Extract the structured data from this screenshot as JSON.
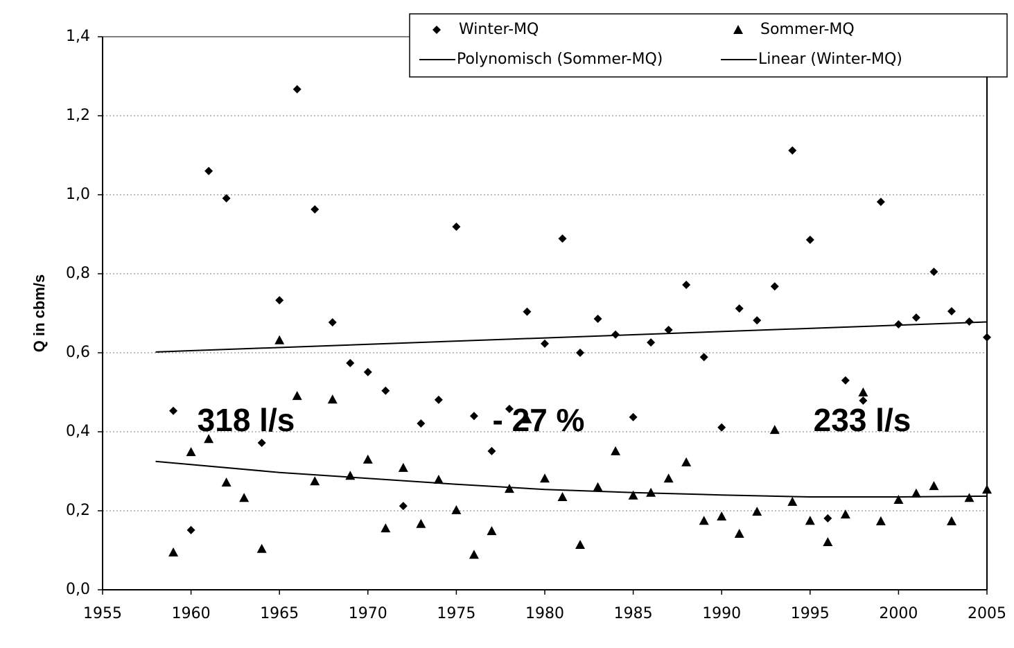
{
  "chart_data": {
    "type": "scatter",
    "y_label": "Q in cbm/s",
    "annotations": [
      "318 l/s",
      "- 27 %",
      "233 l/s"
    ],
    "xlim": [
      1955,
      2005
    ],
    "xticks": [
      1955,
      1960,
      1965,
      1970,
      1975,
      1980,
      1985,
      1990,
      1995,
      2000,
      2005
    ],
    "ylim": [
      0,
      1.4
    ],
    "yticks": [
      {
        "value": 0,
        "label": "0,0"
      },
      {
        "value": 0.2,
        "label": "0,2"
      },
      {
        "value": 0.4,
        "label": "0,4"
      },
      {
        "value": 0.6,
        "label": "0,6"
      },
      {
        "value": 0.8,
        "label": "0,8"
      },
      {
        "value": 1.0,
        "label": "1,0"
      },
      {
        "value": 1.2,
        "label": "1,2"
      },
      {
        "value": 1.4,
        "label": "1,4"
      }
    ],
    "grid": true,
    "legend": "top-right",
    "series": [
      {
        "name": "Winter-MQ",
        "color": "#000000",
        "marker": "diamond",
        "x": [
          1959,
          1960,
          1961,
          1962,
          1964,
          1965,
          1966,
          1967,
          1968,
          1969,
          1970,
          1971,
          1972,
          1973,
          1974,
          1975,
          1976,
          1977,
          1978,
          1979,
          1980,
          1981,
          1982,
          1983,
          1984,
          1985,
          1986,
          1987,
          1988,
          1989,
          1990,
          1991,
          1992,
          1993,
          1994,
          1995,
          1996,
          1997,
          1998,
          1999,
          2000,
          2001,
          2002,
          2003,
          2004,
          2005
        ],
        "values": [
          0.453,
          0.151,
          1.06,
          0.991,
          0.372,
          0.733,
          1.267,
          0.963,
          0.677,
          0.574,
          0.551,
          0.504,
          0.212,
          0.421,
          0.481,
          0.919,
          0.44,
          0.351,
          0.458,
          0.704,
          0.623,
          0.889,
          0.6,
          0.686,
          0.646,
          0.437,
          0.626,
          0.658,
          0.772,
          0.589,
          0.411,
          0.712,
          0.682,
          0.768,
          1.112,
          0.886,
          0.181,
          0.53,
          0.479,
          0.982,
          0.672,
          0.689,
          0.805,
          0.705,
          0.679,
          0.639
        ]
      },
      {
        "name": "Sommer-MQ",
        "color": "#000000",
        "marker": "triangle",
        "x": [
          1959,
          1960,
          1961,
          1962,
          1963,
          1964,
          1965,
          1966,
          1967,
          1968,
          1969,
          1970,
          1971,
          1972,
          1973,
          1974,
          1975,
          1976,
          1977,
          1978,
          1979,
          1980,
          1981,
          1982,
          1983,
          1984,
          1985,
          1986,
          1987,
          1988,
          1989,
          1990,
          1991,
          1992,
          1993,
          1994,
          1995,
          1996,
          1997,
          1998,
          1999,
          2000,
          2001,
          2002,
          2003,
          2004,
          2005
        ],
        "values": [
          0.095,
          0.349,
          0.382,
          0.272,
          0.233,
          0.104,
          0.632,
          0.491,
          0.275,
          0.482,
          0.289,
          0.33,
          0.156,
          0.309,
          0.167,
          0.279,
          0.202,
          0.089,
          0.149,
          0.256,
          0.432,
          0.282,
          0.235,
          0.114,
          0.26,
          0.351,
          0.239,
          0.246,
          0.282,
          0.323,
          0.175,
          0.186,
          0.142,
          0.198,
          0.405,
          0.223,
          0.175,
          0.121,
          0.191,
          0.5,
          0.174,
          0.228,
          0.244,
          0.263,
          0.174,
          0.233,
          0.254
        ]
      },
      {
        "name": "Polynomisch (Sommer-MQ)",
        "color": "#000000",
        "marker": "line",
        "x": [
          1958,
          1965,
          1970,
          1975,
          1980,
          1985,
          1990,
          1995,
          2000,
          2005
        ],
        "values": [
          0.325,
          0.297,
          0.282,
          0.267,
          0.254,
          0.246,
          0.24,
          0.235,
          0.235,
          0.237
        ]
      },
      {
        "name": "Linear (Winter-MQ)",
        "color": "#000000",
        "marker": "line",
        "x": [
          1958,
          2005
        ],
        "values": [
          0.602,
          0.678
        ]
      }
    ]
  }
}
